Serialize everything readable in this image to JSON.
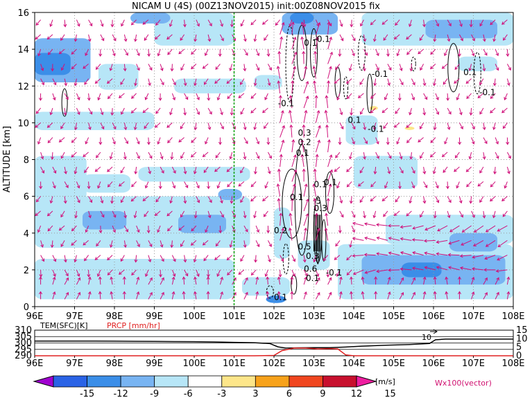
{
  "chart_data": [
    {
      "type": "heatmap",
      "title": "NICAM U (4S) (00Z13NOV2015) init:00Z08NOV2015 fix",
      "ylabel": "ALTITUDE [km]",
      "xlim": [
        96,
        108
      ],
      "ylim": [
        0,
        16
      ],
      "x_ticks": [
        "96E",
        "97E",
        "98E",
        "99E",
        "100E",
        "101E",
        "102E",
        "103E",
        "104E",
        "105E",
        "106E",
        "107E",
        "108E"
      ],
      "y_ticks": [
        "0",
        "2",
        "4",
        "6",
        "8",
        "10",
        "12",
        "14",
        "16"
      ],
      "grid": true,
      "reference_line_x": 101,
      "contour_labels": [
        "0.1",
        "-0.1",
        "-0.1",
        "0.1",
        "-0.1",
        "0.3",
        "0.2",
        "0.1",
        "0.1",
        "0.1",
        "0.2",
        "0.3",
        "0.1",
        "0.5",
        "0.3",
        "0.6",
        "0.1",
        "-0.1",
        "5",
        "0.1",
        "-0.1",
        "-0.1",
        "0.1"
      ],
      "vector_label": "Wx100(vector)"
    },
    {
      "type": "line",
      "xlim": [
        96,
        108
      ],
      "left_axis": {
        "label": "TEM(SFC)[K]",
        "ticks": [
          "290",
          "295",
          "300",
          "305",
          "310"
        ],
        "ylim": [
          290,
          310
        ]
      },
      "right_axis": {
        "label": "PRCP [mm/hr]",
        "ticks": [
          "0",
          "5",
          "10",
          "15"
        ],
        "ylim": [
          0,
          15
        ]
      },
      "x_ticks": [
        "96E",
        "97E",
        "98E",
        "99E",
        "100E",
        "101E",
        "102E",
        "103E",
        "104E",
        "105E",
        "106E",
        "107E",
        "108E"
      ],
      "annotation": "10",
      "series": [
        {
          "name": "TEM(SFC)[K]",
          "x": [
            96,
            96.5,
            97,
            97.5,
            98,
            98.5,
            99,
            99.5,
            100,
            100.5,
            101,
            101.5,
            101.9,
            102.1,
            102.3,
            102.6,
            103,
            103.4,
            103.8,
            104.2,
            104.8,
            105.4,
            105.9,
            106.05,
            106.3,
            107,
            108
          ],
          "values": [
            301.5,
            301.5,
            301.5,
            301.5,
            301.4,
            301.3,
            301.2,
            301.1,
            301.0,
            300.8,
            300.5,
            300.2,
            299.5,
            297.0,
            296.0,
            296.2,
            296.3,
            296.4,
            296.8,
            297.5,
            298.2,
            298.8,
            299.6,
            302.5,
            303.0,
            303.0,
            303.0
          ]
        },
        {
          "name": "PRCP [mm/hr]",
          "x": [
            96,
            101.5,
            102.0,
            102.2,
            102.5,
            102.8,
            103.1,
            103.4,
            103.6,
            103.8,
            104,
            108
          ],
          "values": [
            0,
            0,
            0.2,
            3,
            4.5,
            4.5,
            4.0,
            4.2,
            4.0,
            0.5,
            0,
            0
          ]
        }
      ]
    },
    {
      "type": "table",
      "colorbar_ticks": [
        "-15",
        "-12",
        "-9",
        "-6",
        "-3",
        "3",
        "6",
        "9",
        "12",
        "15"
      ],
      "colorbar_unit": "[m/s]",
      "colors": [
        "#a000d0",
        "#2a63e6",
        "#3b8ee8",
        "#78b4f2",
        "#b7e6f7",
        "#ffffff",
        "#fde68a",
        "#f7a21b",
        "#f0461f",
        "#c8102e",
        "#ee1ea0"
      ]
    }
  ]
}
